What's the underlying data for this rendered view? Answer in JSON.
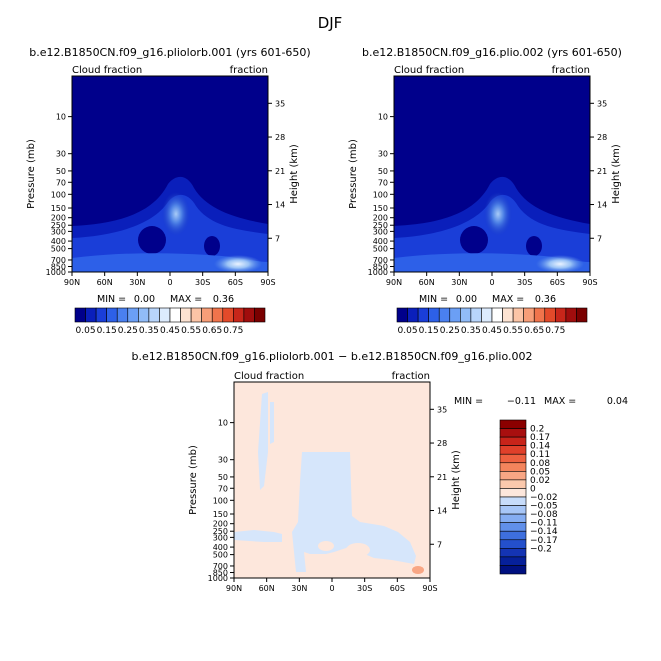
{
  "figure": {
    "title": "DJF"
  },
  "chart_data": [
    {
      "type": "heatmap",
      "title": "b.e12.B1850CN.f09_g16.pliolorb.001 (yrs 601-650)",
      "left_annotation": "Cloud fraction",
      "right_annotation": "fraction",
      "xlabel": "",
      "ylabel": "Pressure (mb)",
      "y2label": "Height (km)",
      "x_ticks": [
        "90N",
        "60N",
        "30N",
        "0",
        "30S",
        "60S",
        "90S"
      ],
      "y_ticks": [
        "10",
        "30",
        "50",
        "70",
        "100",
        "150",
        "200",
        "250",
        "300",
        "400",
        "500",
        "700",
        "850",
        "1000"
      ],
      "y2_ticks": [
        "35",
        "28",
        "21",
        "14",
        "7"
      ],
      "ylim": [
        1000,
        3
      ],
      "y_scale": "log",
      "stats": {
        "min_label": "MIN =",
        "min": "0.00",
        "max_label": "MAX =",
        "max": "0.36"
      },
      "colorbar": {
        "orientation": "horizontal",
        "levels": [
          "0.05",
          "0.15",
          "0.25",
          "0.35",
          "0.45",
          "0.55",
          "0.65",
          "0.75"
        ],
        "colors": [
          "#00008b",
          "#0a1fbb",
          "#1a3ed8",
          "#2d60e8",
          "#4a80f0",
          "#6b9ff5",
          "#91bcf8",
          "#b8d5fb",
          "#dcebfd",
          "#ffffff",
          "#fde3d2",
          "#fbc4a6",
          "#f79e78",
          "#f0744c",
          "#e34a2a",
          "#c8261a",
          "#a00d0d",
          "#7a0000"
        ]
      }
    },
    {
      "type": "heatmap",
      "title": "b.e12.B1850CN.f09_g16.plio.002 (yrs 601-650)",
      "left_annotation": "Cloud fraction",
      "right_annotation": "fraction",
      "xlabel": "",
      "ylabel": "Pressure (mb)",
      "y2label": "Height (km)",
      "x_ticks": [
        "90N",
        "60N",
        "30N",
        "0",
        "30S",
        "60S",
        "90S"
      ],
      "y_ticks": [
        "10",
        "30",
        "50",
        "70",
        "100",
        "150",
        "200",
        "250",
        "300",
        "400",
        "500",
        "700",
        "850",
        "1000"
      ],
      "y2_ticks": [
        "35",
        "28",
        "21",
        "14",
        "7"
      ],
      "ylim": [
        1000,
        3
      ],
      "y_scale": "log",
      "stats": {
        "min_label": "MIN =",
        "min": "0.00",
        "max_label": "MAX =",
        "max": "0.36"
      },
      "colorbar": {
        "orientation": "horizontal",
        "levels": [
          "0.05",
          "0.15",
          "0.25",
          "0.35",
          "0.45",
          "0.55",
          "0.65",
          "0.75"
        ],
        "colors": [
          "#00008b",
          "#0a1fbb",
          "#1a3ed8",
          "#2d60e8",
          "#4a80f0",
          "#6b9ff5",
          "#91bcf8",
          "#b8d5fb",
          "#dcebfd",
          "#ffffff",
          "#fde3d2",
          "#fbc4a6",
          "#f79e78",
          "#f0744c",
          "#e34a2a",
          "#c8261a",
          "#a00d0d",
          "#7a0000"
        ]
      }
    },
    {
      "type": "heatmap",
      "title": "b.e12.B1850CN.f09_g16.pliolorb.001 − b.e12.B1850CN.f09_g16.plio.002",
      "left_annotation": "Cloud fraction",
      "right_annotation": "fraction",
      "xlabel": "",
      "ylabel": "Pressure (mb)",
      "y2label": "Height (km)",
      "x_ticks": [
        "90N",
        "60N",
        "30N",
        "0",
        "30S",
        "60S",
        "90S"
      ],
      "y_ticks": [
        "10",
        "30",
        "50",
        "70",
        "100",
        "150",
        "200",
        "250",
        "300",
        "400",
        "500",
        "700",
        "850",
        "1000"
      ],
      "y2_ticks": [
        "35",
        "28",
        "21",
        "14",
        "7"
      ],
      "ylim": [
        1000,
        3
      ],
      "y_scale": "log",
      "stats": {
        "min_label": "MIN =",
        "min": "−0.11",
        "max_label": "MAX =",
        "max": "0.04"
      },
      "colorbar": {
        "orientation": "vertical",
        "levels": [
          "0.2",
          "0.17",
          "0.14",
          "0.11",
          "0.08",
          "0.05",
          "0.02",
          "0",
          "−0.02",
          "−0.05",
          "−0.08",
          "−0.11",
          "−0.14",
          "−0.17",
          "−0.2"
        ],
        "colors": [
          "#8b0000",
          "#a80f0f",
          "#c8241a",
          "#e0402a",
          "#ee6140",
          "#f4845c",
          "#f8a684",
          "#fbc9ad",
          "#fde7dc",
          "#c7dcfa",
          "#a7c6f7",
          "#85adf2",
          "#6190ea",
          "#3e6fde",
          "#2450cc",
          "#1434b4",
          "#06209a",
          "#001080"
        ]
      }
    }
  ]
}
